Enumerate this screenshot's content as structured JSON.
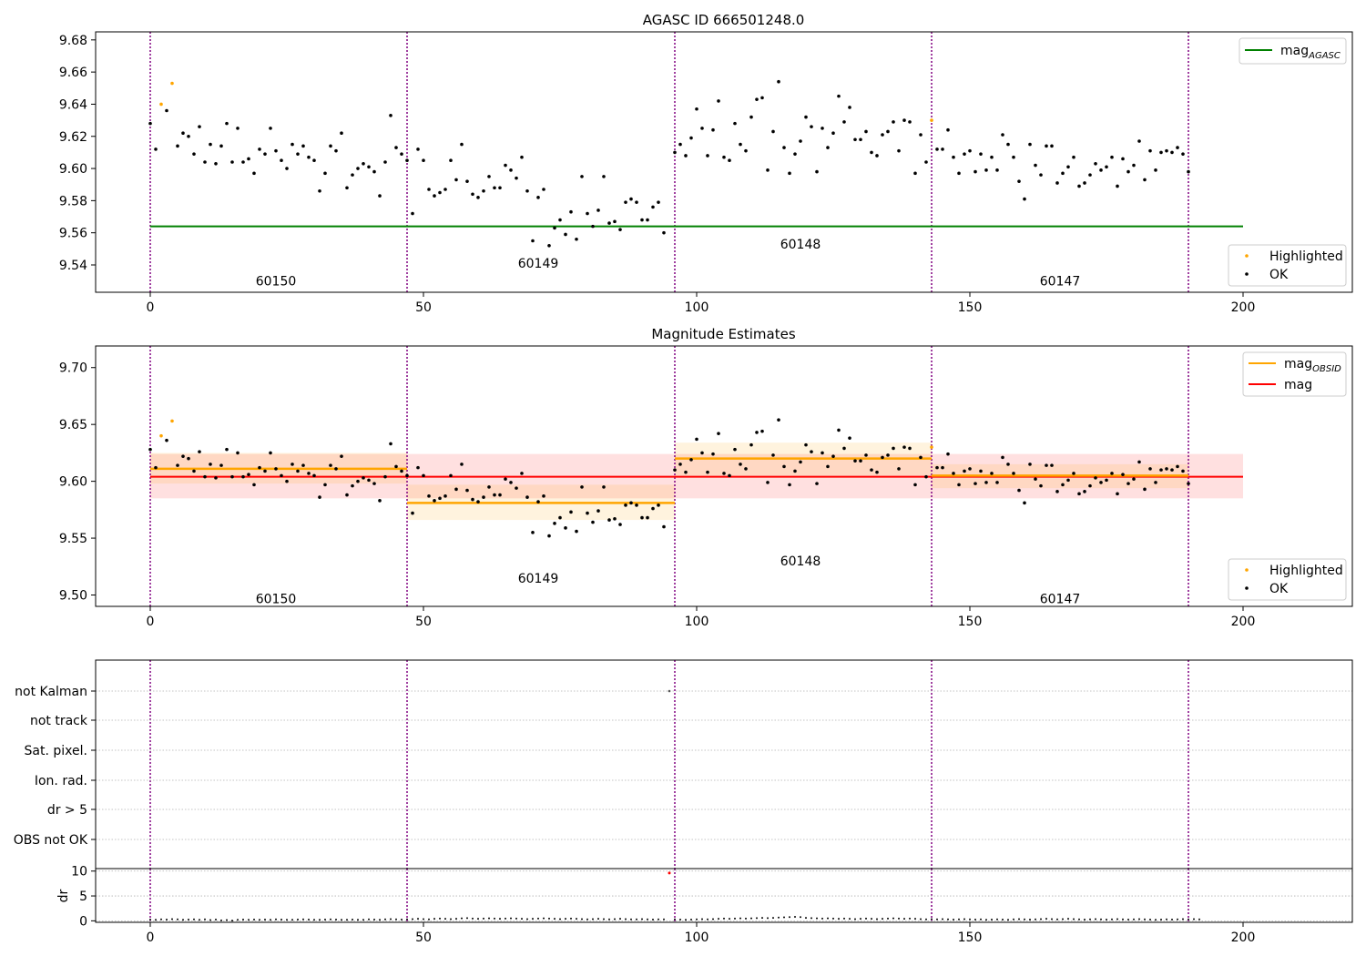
{
  "colors": {
    "ok": "#000000",
    "highlighted": "#ffa500",
    "agasc_line": "#008000",
    "obsid_line": "#ffa500",
    "mag_line": "#ff0000",
    "obsid_band": "#ffa500",
    "mag_band": "#ff0000",
    "obs_divider": "#800080",
    "flag_marker": "#ff0000",
    "grid": "#b0b0b0"
  },
  "chart_data": [
    {
      "type": "scatter",
      "title": "AGASC ID 666501248.0",
      "xlabel": "",
      "ylabel": "",
      "xlim": [
        -10,
        220
      ],
      "ylim": [
        9.523,
        9.685
      ],
      "xticks": [
        0,
        50,
        100,
        150,
        200
      ],
      "yticks": [
        9.54,
        9.56,
        9.58,
        9.6,
        9.62,
        9.64,
        9.66,
        9.68
      ],
      "ytick_labels": [
        "9.54",
        "9.56",
        "9.58",
        "9.60",
        "9.62",
        "9.64",
        "9.66",
        "9.68"
      ],
      "obs_boundaries": [
        0,
        47,
        96,
        143,
        190
      ],
      "obsid_labels": [
        {
          "text": "60150",
          "x": 23,
          "y": 9.53
        },
        {
          "text": "60149",
          "x": 71,
          "y": 9.541
        },
        {
          "text": "60148",
          "x": 119,
          "y": 9.553
        },
        {
          "text": "60147",
          "x": 166.5,
          "y": 9.53
        }
      ],
      "agasc_mag": 9.564,
      "agasc_mag_range": [
        0,
        200
      ],
      "legend_upper": [
        {
          "label": "mag",
          "subscript": "AGASC",
          "kind": "line",
          "color": "#008000"
        }
      ],
      "legend_lower": [
        {
          "label": "Highlighted",
          "kind": "dot",
          "color": "#ffa500"
        },
        {
          "label": "OK",
          "kind": "dot",
          "color": "#000000"
        }
      ],
      "highlighted": [
        [
          2,
          9.64
        ],
        [
          4,
          9.653
        ],
        [
          143,
          9.63
        ]
      ],
      "ok": [
        [
          0,
          9.628
        ],
        [
          1,
          9.612
        ],
        [
          3,
          9.636
        ],
        [
          5,
          9.614
        ],
        [
          6,
          9.622
        ],
        [
          7,
          9.62
        ],
        [
          8,
          9.609
        ],
        [
          9,
          9.626
        ],
        [
          10,
          9.604
        ],
        [
          11,
          9.615
        ],
        [
          12,
          9.603
        ],
        [
          13,
          9.614
        ],
        [
          14,
          9.628
        ],
        [
          15,
          9.604
        ],
        [
          16,
          9.625
        ],
        [
          17,
          9.604
        ],
        [
          18,
          9.606
        ],
        [
          19,
          9.597
        ],
        [
          20,
          9.612
        ],
        [
          21,
          9.609
        ],
        [
          22,
          9.625
        ],
        [
          23,
          9.611
        ],
        [
          24,
          9.605
        ],
        [
          25,
          9.6
        ],
        [
          26,
          9.615
        ],
        [
          27,
          9.609
        ],
        [
          28,
          9.614
        ],
        [
          29,
          9.607
        ],
        [
          30,
          9.605
        ],
        [
          31,
          9.586
        ],
        [
          32,
          9.597
        ],
        [
          33,
          9.614
        ],
        [
          34,
          9.611
        ],
        [
          35,
          9.622
        ],
        [
          36,
          9.588
        ],
        [
          37,
          9.596
        ],
        [
          38,
          9.6
        ],
        [
          39,
          9.603
        ],
        [
          40,
          9.601
        ],
        [
          41,
          9.598
        ],
        [
          42,
          9.583
        ],
        [
          43,
          9.604
        ],
        [
          44,
          9.633
        ],
        [
          45,
          9.613
        ],
        [
          46,
          9.609
        ],
        [
          47,
          9.605
        ],
        [
          48,
          9.572
        ],
        [
          49,
          9.612
        ],
        [
          50,
          9.605
        ],
        [
          51,
          9.587
        ],
        [
          52,
          9.583
        ],
        [
          53,
          9.585
        ],
        [
          54,
          9.587
        ],
        [
          55,
          9.605
        ],
        [
          56,
          9.593
        ],
        [
          57,
          9.615
        ],
        [
          58,
          9.592
        ],
        [
          59,
          9.584
        ],
        [
          60,
          9.582
        ],
        [
          61,
          9.586
        ],
        [
          62,
          9.595
        ],
        [
          63,
          9.588
        ],
        [
          64,
          9.588
        ],
        [
          65,
          9.602
        ],
        [
          66,
          9.599
        ],
        [
          67,
          9.594
        ],
        [
          68,
          9.607
        ],
        [
          69,
          9.586
        ],
        [
          70,
          9.555
        ],
        [
          71,
          9.582
        ],
        [
          72,
          9.587
        ],
        [
          73,
          9.552
        ],
        [
          74,
          9.563
        ],
        [
          75,
          9.568
        ],
        [
          76,
          9.559
        ],
        [
          77,
          9.573
        ],
        [
          78,
          9.556
        ],
        [
          79,
          9.595
        ],
        [
          80,
          9.572
        ],
        [
          81,
          9.564
        ],
        [
          82,
          9.574
        ],
        [
          83,
          9.595
        ],
        [
          84,
          9.566
        ],
        [
          85,
          9.567
        ],
        [
          86,
          9.562
        ],
        [
          87,
          9.579
        ],
        [
          88,
          9.581
        ],
        [
          89,
          9.579
        ],
        [
          90,
          9.568
        ],
        [
          91,
          9.568
        ],
        [
          92,
          9.576
        ],
        [
          93,
          9.579
        ],
        [
          94,
          9.56
        ],
        [
          96,
          9.61
        ],
        [
          97,
          9.615
        ],
        [
          98,
          9.608
        ],
        [
          99,
          9.619
        ],
        [
          100,
          9.637
        ],
        [
          101,
          9.625
        ],
        [
          102,
          9.608
        ],
        [
          103,
          9.624
        ],
        [
          104,
          9.642
        ],
        [
          105,
          9.607
        ],
        [
          106,
          9.605
        ],
        [
          107,
          9.628
        ],
        [
          108,
          9.615
        ],
        [
          109,
          9.611
        ],
        [
          110,
          9.632
        ],
        [
          111,
          9.643
        ],
        [
          112,
          9.644
        ],
        [
          113,
          9.599
        ],
        [
          114,
          9.623
        ],
        [
          115,
          9.654
        ],
        [
          116,
          9.613
        ],
        [
          117,
          9.597
        ],
        [
          118,
          9.609
        ],
        [
          119,
          9.617
        ],
        [
          120,
          9.632
        ],
        [
          121,
          9.626
        ],
        [
          122,
          9.598
        ],
        [
          123,
          9.625
        ],
        [
          124,
          9.613
        ],
        [
          125,
          9.622
        ],
        [
          126,
          9.645
        ],
        [
          127,
          9.629
        ],
        [
          128,
          9.638
        ],
        [
          129,
          9.618
        ],
        [
          130,
          9.618
        ],
        [
          131,
          9.623
        ],
        [
          132,
          9.61
        ],
        [
          133,
          9.608
        ],
        [
          134,
          9.621
        ],
        [
          135,
          9.623
        ],
        [
          136,
          9.629
        ],
        [
          137,
          9.611
        ],
        [
          138,
          9.63
        ],
        [
          139,
          9.629
        ],
        [
          140,
          9.597
        ],
        [
          141,
          9.621
        ],
        [
          142,
          9.604
        ],
        [
          144,
          9.612
        ],
        [
          145,
          9.612
        ],
        [
          146,
          9.624
        ],
        [
          147,
          9.607
        ],
        [
          148,
          9.597
        ],
        [
          149,
          9.609
        ],
        [
          150,
          9.611
        ],
        [
          151,
          9.598
        ],
        [
          152,
          9.609
        ],
        [
          153,
          9.599
        ],
        [
          154,
          9.607
        ],
        [
          155,
          9.599
        ],
        [
          156,
          9.621
        ],
        [
          157,
          9.615
        ],
        [
          158,
          9.607
        ],
        [
          159,
          9.592
        ],
        [
          160,
          9.581
        ],
        [
          161,
          9.615
        ],
        [
          162,
          9.602
        ],
        [
          163,
          9.596
        ],
        [
          164,
          9.614
        ],
        [
          165,
          9.614
        ],
        [
          166,
          9.591
        ],
        [
          167,
          9.597
        ],
        [
          168,
          9.601
        ],
        [
          169,
          9.607
        ],
        [
          170,
          9.589
        ],
        [
          171,
          9.591
        ],
        [
          172,
          9.596
        ],
        [
          173,
          9.603
        ],
        [
          174,
          9.599
        ],
        [
          175,
          9.601
        ],
        [
          176,
          9.607
        ],
        [
          177,
          9.589
        ],
        [
          178,
          9.606
        ],
        [
          179,
          9.598
        ],
        [
          180,
          9.602
        ],
        [
          181,
          9.617
        ],
        [
          182,
          9.593
        ],
        [
          183,
          9.611
        ],
        [
          184,
          9.599
        ],
        [
          185,
          9.61
        ],
        [
          186,
          9.611
        ],
        [
          187,
          9.61
        ],
        [
          188,
          9.613
        ],
        [
          189,
          9.609
        ],
        [
          190,
          9.598
        ]
      ]
    },
    {
      "type": "scatter",
      "title": "Magnitude Estimates",
      "xlabel": "",
      "ylabel": "",
      "xlim": [
        -10,
        220
      ],
      "ylim": [
        9.49,
        9.719
      ],
      "xticks": [
        0,
        50,
        100,
        150,
        200
      ],
      "yticks": [
        9.5,
        9.55,
        9.6,
        9.65,
        9.7
      ],
      "ytick_labels": [
        "9.50",
        "9.55",
        "9.60",
        "9.65",
        "9.70"
      ],
      "obs_boundaries": [
        0,
        47,
        96,
        143,
        190
      ],
      "obsid_labels": [
        {
          "text": "60150",
          "x": 23,
          "y": 9.497
        },
        {
          "text": "60149",
          "x": 71,
          "y": 9.515
        },
        {
          "text": "60148",
          "x": 119,
          "y": 9.53
        },
        {
          "text": "60147",
          "x": 166.5,
          "y": 9.497
        }
      ],
      "obsid_mags": [
        {
          "x0": 0,
          "x1": 47,
          "mag": 9.611,
          "low": 9.598,
          "high": 9.625
        },
        {
          "x0": 47,
          "x1": 96,
          "mag": 9.581,
          "low": 9.566,
          "high": 9.597
        },
        {
          "x0": 96,
          "x1": 143,
          "mag": 9.62,
          "low": 9.605,
          "high": 9.634
        },
        {
          "x0": 143,
          "x1": 190,
          "mag": 9.605,
          "low": 9.594,
          "high": 9.615
        }
      ],
      "mag": {
        "value": 9.604,
        "low": 9.585,
        "high": 9.624,
        "x0": 0,
        "x1": 200
      },
      "legend_upper": [
        {
          "label": "mag",
          "subscript": "OBSID",
          "kind": "line",
          "color": "#ffa500"
        },
        {
          "label": "mag",
          "subscript": "",
          "kind": "line",
          "color": "#ff0000"
        }
      ],
      "legend_lower": [
        {
          "label": "Highlighted",
          "kind": "dot",
          "color": "#ffa500"
        },
        {
          "label": "OK",
          "kind": "dot",
          "color": "#000000"
        }
      ],
      "note": "uses the same highlighted and ok points as the first panel"
    },
    {
      "type": "scatter",
      "title": "",
      "xlabel": "",
      "xlim": [
        -10,
        220
      ],
      "xticks": [
        0,
        50,
        100,
        150,
        200
      ],
      "obs_boundaries": [
        0,
        47,
        96,
        143,
        190
      ],
      "flag_categories": [
        "not Kalman",
        "not track",
        "Sat. pixel.",
        "Ion. rad.",
        "dr > 5",
        "OBS not OK"
      ],
      "flag_points": [
        {
          "x": 95,
          "category": "not Kalman"
        }
      ],
      "dr": {
        "ylabel": "dr",
        "ylim": [
          -0.3,
          10.5
        ],
        "yticks": [
          0,
          5,
          10
        ],
        "highlighted": [
          [
            95,
            9.6
          ]
        ],
        "values": [
          0.25,
          0.2,
          0.3,
          0.25,
          0.35,
          0.3,
          0.2,
          0.25,
          0.3,
          0.2,
          0.3,
          0.15,
          0.25,
          0.1,
          0.15,
          0.05,
          0.2,
          0.25,
          0.2,
          0.25,
          0.2,
          0.25,
          0.2,
          0.3,
          0.25,
          0.2,
          0.2,
          0.25,
          0.3,
          0.25,
          0.2,
          0.2,
          0.25,
          0.3,
          0.25,
          0.2,
          0.2,
          0.25,
          0.2,
          0.2,
          0.3,
          0.25,
          0.2,
          0.3,
          0.35,
          0.3,
          0.25,
          0.3,
          0.35,
          0.4,
          0.35,
          0.3,
          0.4,
          0.45,
          0.4,
          0.35,
          0.4,
          0.5,
          0.55,
          0.45,
          0.4,
          0.45,
          0.5,
          0.45,
          0.4,
          0.45,
          0.5,
          0.45,
          0.4,
          0.35,
          0.4,
          0.45,
          0.5,
          0.45,
          0.4,
          0.35,
          0.4,
          0.45,
          0.4,
          0.35,
          0.3,
          0.35,
          0.4,
          0.35,
          0.3,
          0.35,
          0.4,
          0.35,
          0.3,
          0.3,
          0.35,
          0.3,
          0.25,
          0.3,
          0.3,
          null,
          0.3,
          0.25,
          0.2,
          0.25,
          0.3,
          0.35,
          0.3,
          0.35,
          0.4,
          0.45,
          0.4,
          0.45,
          0.5,
          0.45,
          0.5,
          0.55,
          0.6,
          0.55,
          0.6,
          0.65,
          0.7,
          0.75,
          0.8,
          0.75,
          0.6,
          0.55,
          0.5,
          0.45,
          0.5,
          0.45,
          0.4,
          0.45,
          0.4,
          0.35,
          0.4,
          0.45,
          0.4,
          0.35,
          0.4,
          0.45,
          0.5,
          0.45,
          0.4,
          0.45,
          0.4,
          0.35,
          0.3,
          0.35,
          0.3,
          0.35,
          0.3,
          0.25,
          0.3,
          0.35,
          0.3,
          0.25,
          0.3,
          0.2,
          0.25,
          0.3,
          0.25,
          0.2,
          0.3,
          0.35,
          0.3,
          0.25,
          0.3,
          0.35,
          0.4,
          0.35,
          0.3,
          0.35,
          0.4,
          0.35,
          0.3,
          0.25,
          0.3,
          0.35,
          0.3,
          0.25,
          0.3,
          0.35,
          0.3,
          0.25,
          0.3,
          0.35,
          0.3,
          0.25,
          0.2,
          0.25,
          0.3,
          0.25,
          0.3,
          0.35,
          0.3,
          0.35,
          0.3
        ]
      }
    }
  ]
}
